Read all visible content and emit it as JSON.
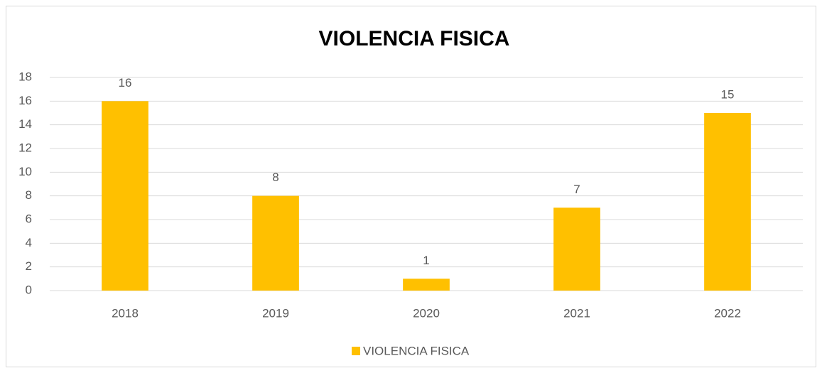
{
  "chart_data": {
    "type": "bar",
    "title": "VIOLENCIA FISICA",
    "categories": [
      "2018",
      "2019",
      "2020",
      "2021",
      "2022"
    ],
    "series": [
      {
        "name": "VIOLENCIA FISICA",
        "color": "#ffc000",
        "values": [
          16,
          8,
          1,
          7,
          15
        ]
      }
    ],
    "ylim": [
      0,
      18
    ],
    "yticks": [
      0,
      2,
      4,
      6,
      8,
      10,
      12,
      14,
      16,
      18
    ],
    "grid": true,
    "legend": "bottom"
  }
}
